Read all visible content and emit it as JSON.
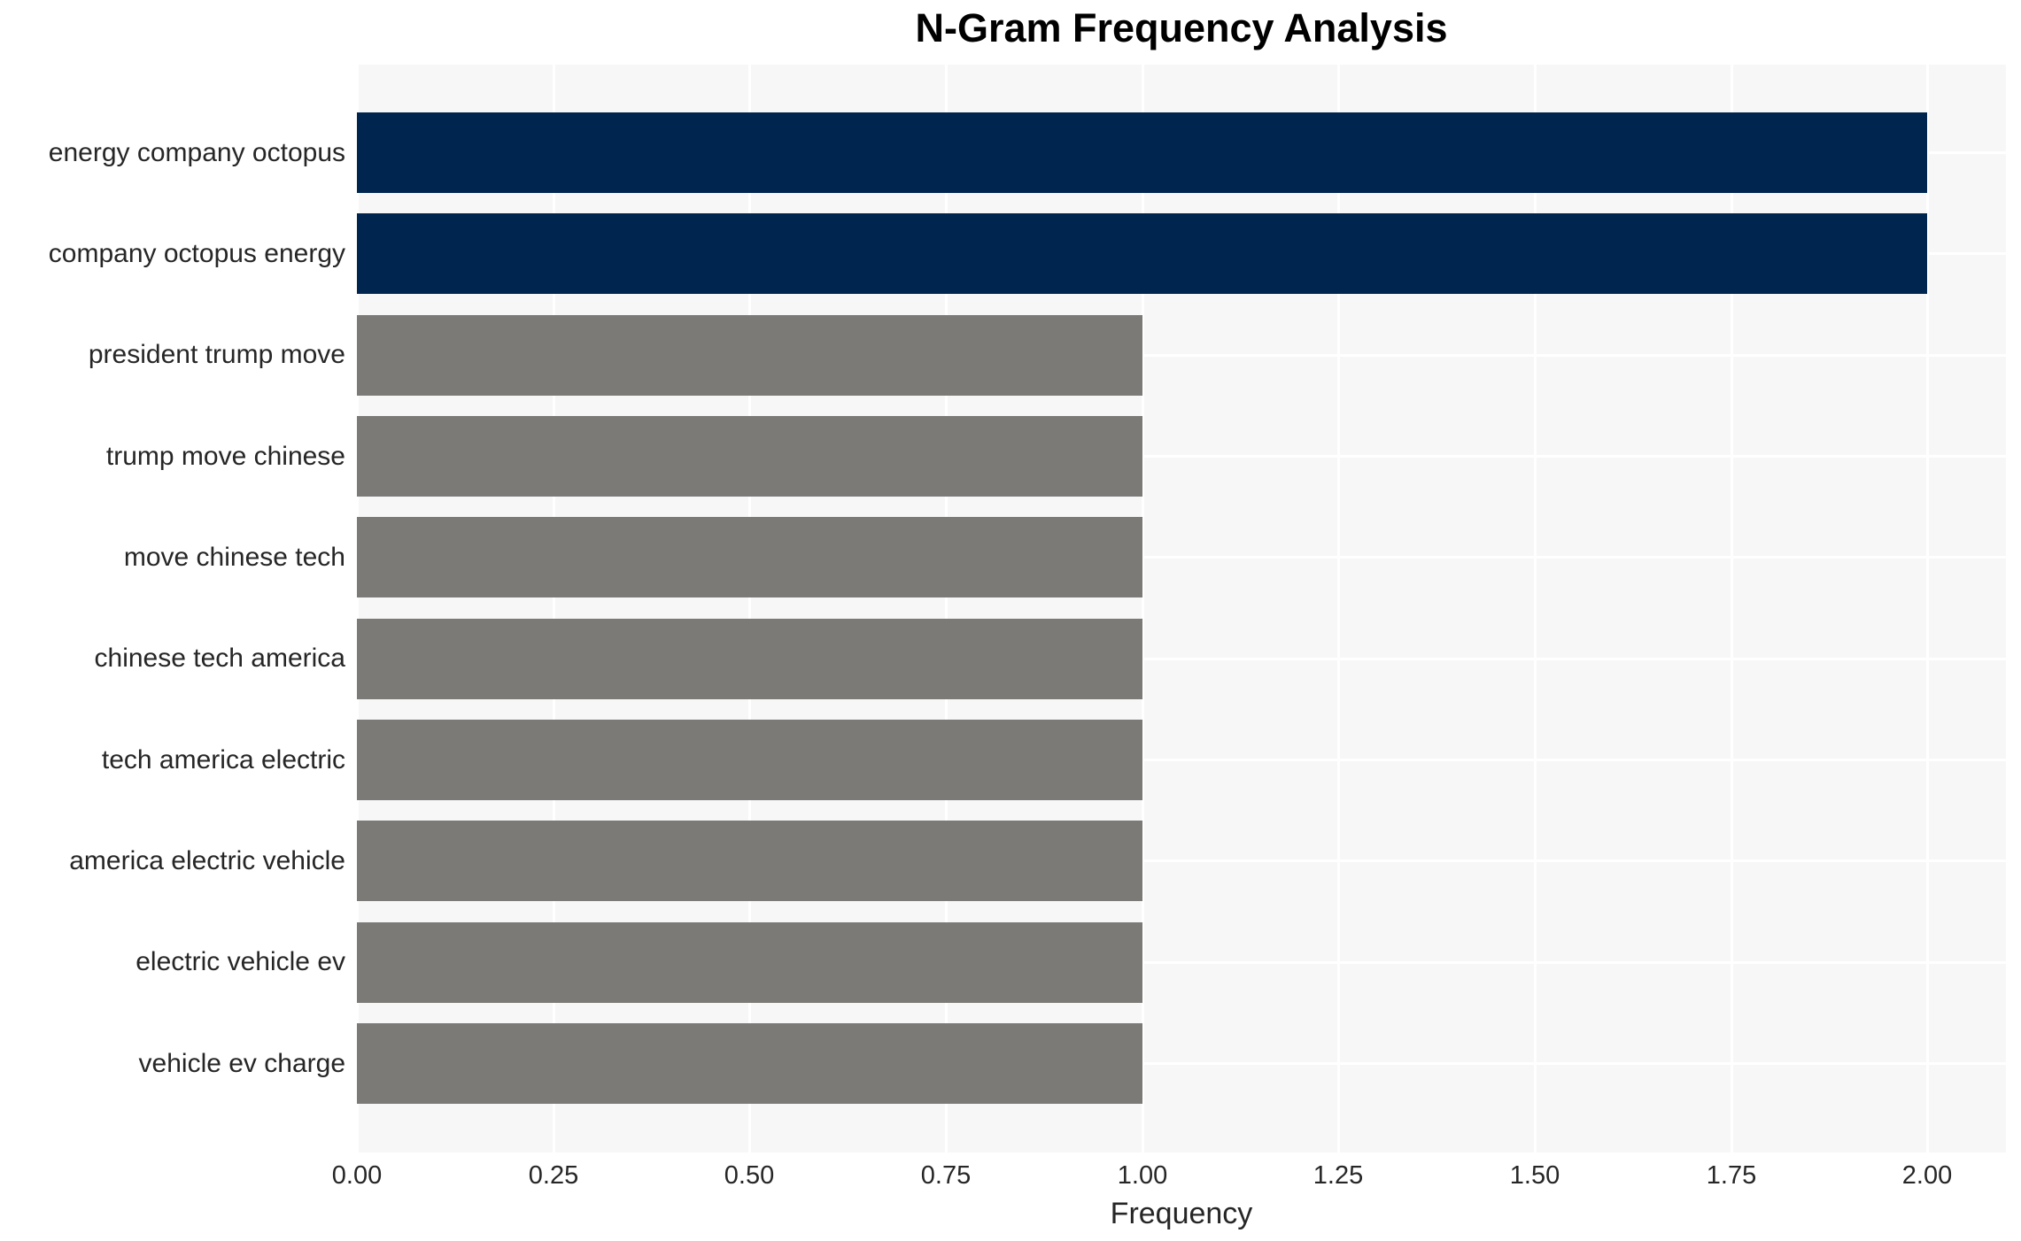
{
  "title": "N-Gram Frequency Analysis",
  "chart_data": {
    "type": "bar",
    "orientation": "horizontal",
    "title": "N-Gram Frequency Analysis",
    "xlabel": "Frequency",
    "ylabel": "",
    "categories": [
      "energy company octopus",
      "company octopus energy",
      "president trump move",
      "trump move chinese",
      "move chinese tech",
      "chinese tech america",
      "tech america electric",
      "america electric vehicle",
      "electric vehicle ev",
      "vehicle ev charge"
    ],
    "values": [
      2,
      2,
      1,
      1,
      1,
      1,
      1,
      1,
      1,
      1
    ],
    "bar_colors": [
      "#00264f",
      "#00264f",
      "#7b7a77",
      "#7b7a77",
      "#7b7a77",
      "#7b7a77",
      "#7b7a77",
      "#7b7a77",
      "#7b7a77",
      "#7b7a77"
    ],
    "xlim": [
      0,
      2.1
    ],
    "xtick_labels": [
      "0.00",
      "0.25",
      "0.50",
      "0.75",
      "1.00",
      "1.25",
      "1.50",
      "1.75",
      "2.00"
    ],
    "xtick_values": [
      0,
      0.25,
      0.5,
      0.75,
      1.0,
      1.25,
      1.5,
      1.75,
      2.0
    ],
    "grid": true,
    "legend": false,
    "colors": {
      "bar_high": "#00264f",
      "bar_low": "#7b7a77",
      "plot_background": "#f7f7f7",
      "gridline": "#ffffff",
      "tick_text": "#262626",
      "title_text": "#000000"
    }
  }
}
